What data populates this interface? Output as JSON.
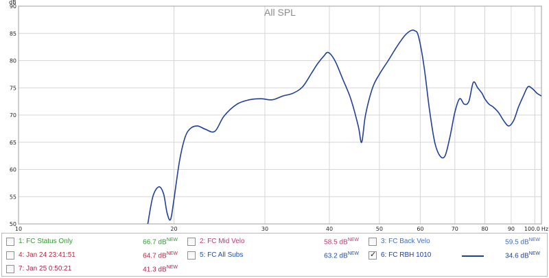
{
  "chart_data": {
    "type": "line",
    "title": "All SPL",
    "x_unit": "Hz",
    "y_unit": "dB",
    "x_scale": "log",
    "xlim": [
      10,
      103
    ],
    "ylim": [
      50,
      90
    ],
    "grid": true,
    "x_ticks": [
      {
        "value": 10,
        "label": "10"
      },
      {
        "value": 20,
        "label": "20"
      },
      {
        "value": 30,
        "label": "30"
      },
      {
        "value": 40,
        "label": "40"
      },
      {
        "value": 50,
        "label": "50"
      },
      {
        "value": 60,
        "label": "60"
      },
      {
        "value": 70,
        "label": "70"
      },
      {
        "value": 80,
        "label": "80"
      },
      {
        "value": 90,
        "label": "90"
      },
      {
        "value": 100,
        "label": "100.0"
      }
    ],
    "y_ticks": [
      50,
      55,
      60,
      65,
      70,
      75,
      80,
      85,
      90
    ],
    "series": [
      {
        "name": "6: FC RBH 1010",
        "color": "#1f3f99",
        "x": [
          17.8,
          18.2,
          18.7,
          19.1,
          19.4,
          19.7,
          20.0,
          20.5,
          21.0,
          21.5,
          22.2,
          23.0,
          24.0,
          25.0,
          26.5,
          28.0,
          29.5,
          31.0,
          32.5,
          34.0,
          35.5,
          37.0,
          38.0,
          39.0,
          39.8,
          41.0,
          42.5,
          44.0,
          45.5,
          46.2,
          47.0,
          48.5,
          50.0,
          52.0,
          54.0,
          56.0,
          57.5,
          58.5,
          59.5,
          61.0,
          62.5,
          64.0,
          65.5,
          67.0,
          68.5,
          70.0,
          71.5,
          73.0,
          74.5,
          76.0,
          77.5,
          79.0,
          80.0,
          81.5,
          83.0,
          85.0,
          87.0,
          89.0,
          91.0,
          93.0,
          95.0,
          97.0,
          99.0,
          101.0,
          103.0
        ],
        "y": [
          50,
          55,
          56.8,
          55.5,
          52.0,
          50.8,
          54.5,
          61.5,
          65.8,
          67.5,
          68.0,
          67.4,
          67.0,
          69.8,
          72.0,
          72.8,
          73.0,
          72.8,
          73.5,
          74.0,
          75.2,
          77.8,
          79.5,
          80.8,
          81.5,
          80.0,
          76.5,
          73.0,
          68.0,
          65.0,
          70.0,
          75.0,
          77.5,
          80.0,
          82.5,
          84.6,
          85.5,
          85.5,
          84.5,
          79.0,
          71.0,
          65.0,
          62.5,
          62.5,
          66.0,
          70.5,
          73.0,
          72.0,
          72.5,
          76.0,
          75.0,
          74.0,
          73.0,
          72.0,
          71.5,
          70.5,
          69.0,
          68.0,
          69.0,
          71.5,
          73.5,
          75.2,
          74.8,
          74.0,
          73.5
        ]
      }
    ]
  },
  "legend": {
    "items": [
      {
        "label": "1: FC Status Only",
        "value": "66.7 dB",
        "sup": "NEW",
        "color": "#2e9b2e",
        "checked": false
      },
      {
        "label": "2: FC Mid Velo",
        "value": "58.5 dB",
        "sup": "NEW",
        "color": "#c8327a",
        "checked": false
      },
      {
        "label": "3: FC Back Velo",
        "value": "59.5 dB",
        "sup": "NEW",
        "color": "#3a6fc8",
        "checked": false
      },
      {
        "label": "4: Jan 24 23:41:51",
        "value": "64.7 dB",
        "sup": "NEW",
        "color": "#c0253d",
        "checked": false
      },
      {
        "label": "5: FC All Subs",
        "value": "63.2 dB",
        "sup": "NEW",
        "color": "#1e50a8",
        "checked": false
      },
      {
        "label": "6: FC RBH 1010",
        "value": "34.6 dB",
        "sup": "NEW",
        "color": "#1f3f99",
        "checked": true
      },
      {
        "label": "7: Jan 25 0:50:21",
        "value": "41.3 dB",
        "sup": "NEW",
        "color": "#b0204a",
        "checked": false
      }
    ]
  }
}
